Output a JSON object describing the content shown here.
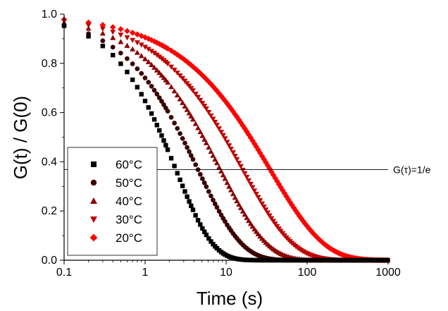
{
  "chart_data": {
    "type": "scatter",
    "title": "",
    "xlabel": "Time (s)",
    "ylabel": "G(t) / G(0)",
    "xscale": "log",
    "xlim": [
      0.1,
      1000
    ],
    "ylim": [
      0.0,
      1.0
    ],
    "x_ticks": [
      "0.1",
      "1",
      "10",
      "100",
      "1000"
    ],
    "y_ticks": [
      "0.0",
      "0.2",
      "0.4",
      "0.6",
      "0.8",
      "1.0"
    ],
    "grid": false,
    "legend_position": "bottom-left",
    "reference_line": {
      "y": 0.368,
      "label": "G(τ)=1/e"
    },
    "x_sampling": {
      "start": 0.1,
      "step": 0.1
    },
    "series": [
      {
        "name": "60°C",
        "marker": "square",
        "color": "#000000",
        "tau": 2.4,
        "beta": 0.95,
        "x": [
          0.1,
          0.2,
          0.3,
          0.4,
          0.5,
          1,
          2,
          3,
          5,
          10,
          20,
          50
        ],
        "values": [
          0.99,
          0.96,
          0.92,
          0.86,
          0.82,
          0.66,
          0.44,
          0.3,
          0.13,
          0.02,
          0.0,
          0.0
        ]
      },
      {
        "name": "50°C",
        "marker": "circle",
        "color": "#3a0000",
        "tau": 4.5,
        "beta": 0.8,
        "x": [
          0.1,
          0.2,
          0.3,
          0.4,
          0.5,
          1,
          2,
          3,
          5,
          10,
          20,
          50
        ],
        "values": [
          0.99,
          0.97,
          0.94,
          0.91,
          0.88,
          0.8,
          0.63,
          0.5,
          0.33,
          0.1,
          0.02,
          0.0
        ]
      },
      {
        "name": "40°C",
        "marker": "triangle-up",
        "color": "#8b0000",
        "tau": 8.5,
        "beta": 0.75,
        "x": [
          0.1,
          0.2,
          0.3,
          0.4,
          0.5,
          1,
          2,
          5,
          10,
          20,
          50,
          100
        ],
        "values": [
          0.99,
          0.98,
          0.95,
          0.92,
          0.89,
          0.85,
          0.76,
          0.57,
          0.33,
          0.11,
          0.01,
          0.0
        ]
      },
      {
        "name": "30°C",
        "marker": "triangle-down",
        "color": "#c00000",
        "tau": 16,
        "beta": 0.7,
        "x": [
          0.1,
          0.2,
          0.3,
          0.4,
          0.5,
          1,
          2,
          5,
          10,
          20,
          50,
          100,
          200
        ],
        "values": [
          0.99,
          0.98,
          0.95,
          0.92,
          0.9,
          0.86,
          0.8,
          0.67,
          0.51,
          0.31,
          0.09,
          0.02,
          0.0
        ]
      },
      {
        "name": "20°C",
        "marker": "diamond",
        "color": "#ff0000",
        "tau": 35,
        "beta": 0.65,
        "x": [
          0.1,
          0.2,
          0.3,
          0.4,
          0.5,
          1,
          2,
          5,
          10,
          20,
          50,
          100,
          300,
          1000
        ],
        "values": [
          0.99,
          0.99,
          0.96,
          0.93,
          0.91,
          0.87,
          0.82,
          0.74,
          0.63,
          0.49,
          0.25,
          0.11,
          0.03,
          0.01
        ]
      }
    ]
  }
}
